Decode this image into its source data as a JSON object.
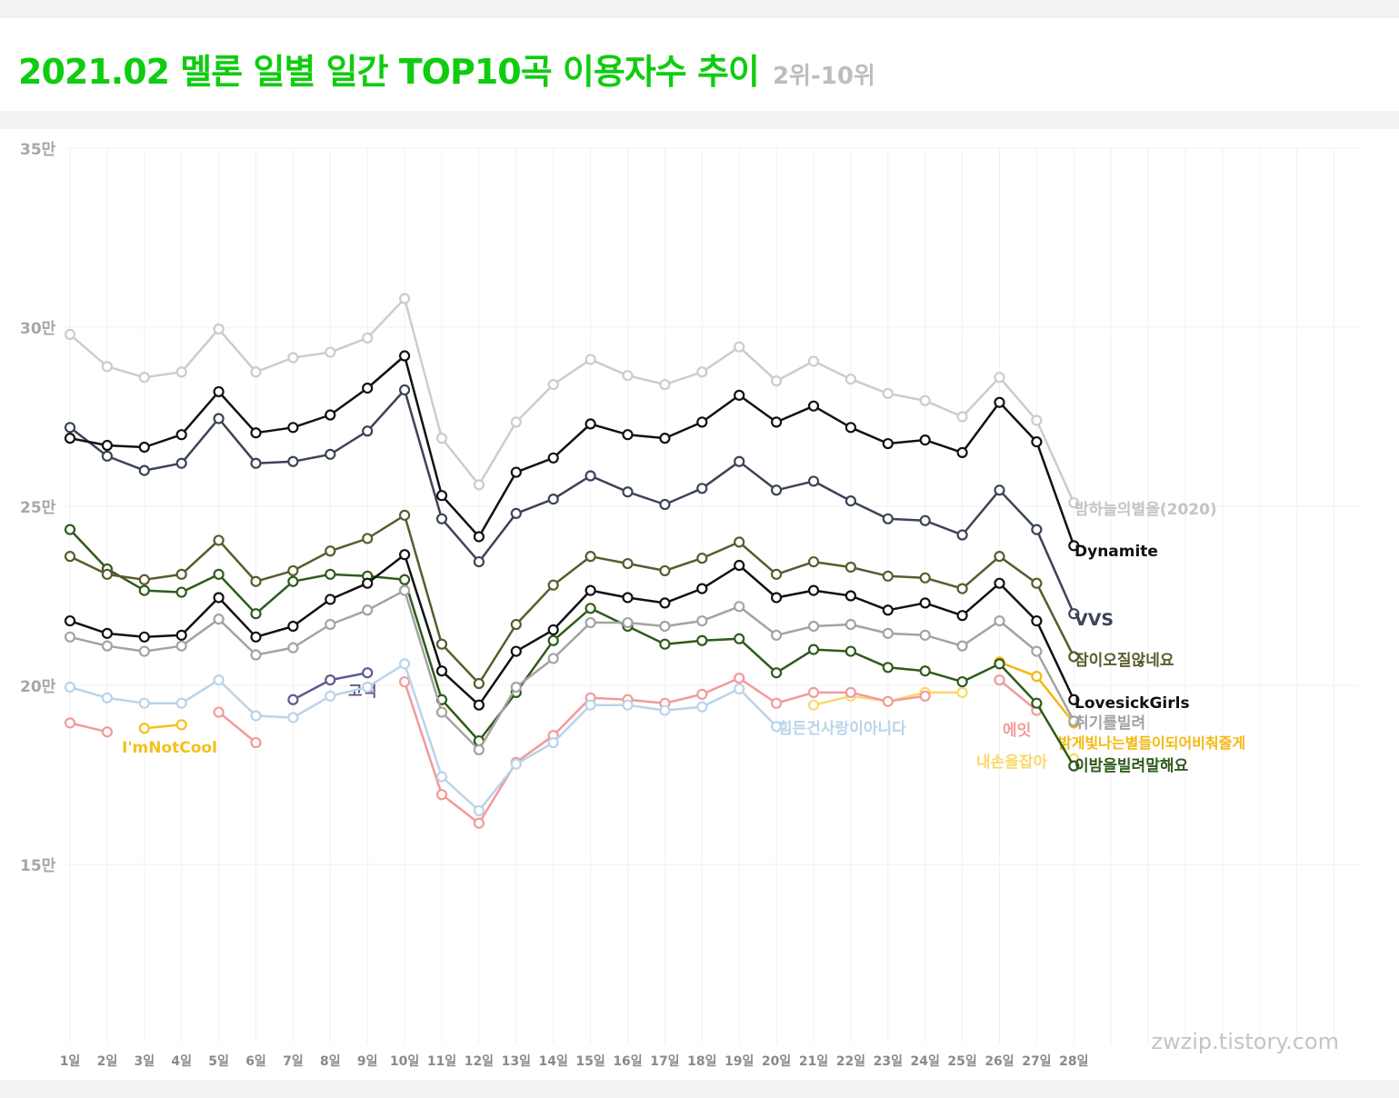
{
  "header": {
    "title": "2021.02 멜론 일별 일간 TOP10곡 이용자수 추이",
    "subtitle": "2위-10위"
  },
  "watermark": "zwzip.tistory.com",
  "chart_data": {
    "type": "line",
    "title": "2021.02 멜론 일별 일간 TOP10곡 이용자수 추이",
    "subtitle": "2위-10위",
    "x": [
      "1일",
      "2일",
      "3일",
      "4일",
      "5일",
      "6일",
      "7일",
      "8일",
      "9일",
      "10일",
      "11일",
      "12일",
      "13일",
      "14일",
      "15일",
      "16일",
      "17일",
      "18일",
      "19일",
      "20일",
      "21일",
      "22일",
      "23일",
      "24일",
      "25일",
      "26일",
      "27일",
      "28일"
    ],
    "ylim": [
      10,
      35
    ],
    "yticks": [
      {
        "value": 15,
        "label": "15만"
      },
      {
        "value": 20,
        "label": "20만"
      },
      {
        "value": 25,
        "label": "25만"
      },
      {
        "value": 30,
        "label": "30만"
      },
      {
        "value": 35,
        "label": "35만"
      }
    ],
    "grid": true,
    "series": [
      {
        "name": "밤하늘의별을(2020)",
        "color": "#cccccc",
        "values": [
          29.8,
          28.9,
          28.6,
          28.75,
          29.95,
          28.75,
          29.15,
          29.3,
          29.7,
          30.8,
          26.9,
          25.6,
          27.35,
          28.4,
          29.1,
          28.65,
          28.4,
          28.75,
          29.45,
          28.5,
          29.05,
          28.55,
          28.15,
          27.95,
          27.5,
          28.6,
          27.4,
          25.1
        ]
      },
      {
        "name": "Dynamite",
        "color": "#111111",
        "values": [
          26.9,
          26.7,
          26.65,
          27.0,
          28.2,
          27.05,
          27.2,
          27.55,
          28.3,
          29.2,
          25.3,
          24.15,
          25.95,
          26.35,
          27.3,
          27.0,
          26.9,
          27.35,
          28.1,
          27.35,
          27.8,
          27.2,
          26.75,
          26.85,
          26.5,
          27.9,
          26.8,
          23.9
        ]
      },
      {
        "name": "VVS",
        "color": "#3b4357",
        "values": [
          27.2,
          26.4,
          26.0,
          26.2,
          27.45,
          26.2,
          26.25,
          26.45,
          27.1,
          28.25,
          24.65,
          23.45,
          24.8,
          25.2,
          25.85,
          25.4,
          25.05,
          25.5,
          26.25,
          25.45,
          25.7,
          25.15,
          24.65,
          24.6,
          24.2,
          25.45,
          24.35,
          22.0
        ]
      },
      {
        "name": "잠이오질않네요",
        "color": "#5a5a2e",
        "values": [
          23.6,
          23.1,
          22.95,
          23.1,
          24.05,
          22.9,
          23.2,
          23.75,
          24.1,
          24.75,
          21.15,
          20.05,
          21.7,
          22.8,
          23.6,
          23.4,
          23.2,
          23.55,
          24.0,
          23.1,
          23.45,
          23.3,
          23.05,
          23.0,
          22.7,
          23.6,
          22.85,
          20.8
        ]
      },
      {
        "name": "LovesickGirls",
        "color": "#111111",
        "values": [
          21.8,
          21.45,
          21.35,
          21.4,
          22.45,
          21.35,
          21.65,
          22.4,
          22.85,
          23.65,
          20.4,
          19.45,
          20.95,
          21.55,
          22.65,
          22.45,
          22.3,
          22.7,
          23.35,
          22.45,
          22.65,
          22.5,
          22.1,
          22.3,
          21.95,
          22.85,
          21.8,
          19.6
        ]
      },
      {
        "name": "취기를빌려",
        "color": "#a3a3a3",
        "values": [
          21.35,
          21.1,
          20.95,
          21.1,
          21.85,
          20.85,
          21.05,
          21.7,
          22.1,
          22.65,
          19.25,
          18.2,
          19.95,
          20.75,
          21.75,
          21.75,
          21.65,
          21.8,
          22.2,
          21.4,
          21.65,
          21.7,
          21.45,
          21.4,
          21.1,
          21.8,
          20.95,
          19.0
        ]
      },
      {
        "name": "이밤을빌려말해요",
        "color": "#2e5b1c",
        "values": [
          24.35,
          23.25,
          22.65,
          22.6,
          23.1,
          22.0,
          22.9,
          23.1,
          23.05,
          22.95,
          19.6,
          18.45,
          19.8,
          21.25,
          22.15,
          21.65,
          21.15,
          21.25,
          21.3,
          20.35,
          21.0,
          20.95,
          20.5,
          20.4,
          20.1,
          20.6,
          19.5,
          17.75
        ]
      },
      {
        "name": "힘든건사랑이아니다",
        "color": "#b9d4ea",
        "values": [
          19.95,
          19.65,
          19.5,
          19.5,
          20.15,
          19.15,
          19.1,
          19.7,
          19.95,
          20.6,
          17.45,
          16.5,
          17.8,
          18.4,
          19.45,
          19.45,
          19.3,
          19.4,
          19.9,
          18.85,
          null,
          null,
          null,
          null,
          null,
          null,
          null,
          null
        ]
      },
      {
        "name": "에잇",
        "color": "#f29a9a",
        "values": [
          18.95,
          18.7,
          null,
          null,
          19.25,
          18.4,
          null,
          null,
          null,
          20.1,
          16.95,
          16.15,
          17.85,
          18.6,
          19.65,
          19.6,
          19.5,
          19.75,
          20.2,
          19.5,
          19.8,
          19.8,
          19.55,
          19.7,
          null,
          20.15,
          19.3,
          null
        ]
      },
      {
        "name": "I'mNotCool",
        "color": "#f5c01a",
        "values": [
          null,
          null,
          18.8,
          18.9,
          null,
          null,
          null,
          null,
          null,
          null,
          null,
          null,
          null,
          null,
          null,
          null,
          null,
          null,
          null,
          null,
          null,
          null,
          null,
          null,
          null,
          null,
          null,
          null
        ]
      },
      {
        "name": "고백",
        "color": "#5c5a8f",
        "values": [
          null,
          null,
          null,
          null,
          null,
          null,
          19.6,
          20.15,
          20.35,
          null,
          null,
          null,
          null,
          null,
          null,
          null,
          null,
          null,
          null,
          null,
          null,
          null,
          null,
          null,
          null,
          null,
          null,
          null
        ]
      },
      {
        "name": "내손을잡아",
        "color": "#f9d96b",
        "values": [
          null,
          null,
          null,
          null,
          null,
          null,
          null,
          null,
          null,
          null,
          null,
          null,
          null,
          null,
          null,
          null,
          null,
          null,
          null,
          null,
          19.45,
          19.7,
          19.55,
          19.8,
          19.8,
          null,
          null,
          17.95
        ]
      },
      {
        "name": "밝게빛나는별들이되어비춰줄게",
        "color": "#f3b90f",
        "values": [
          null,
          null,
          null,
          null,
          null,
          null,
          null,
          null,
          null,
          null,
          null,
          null,
          null,
          null,
          null,
          null,
          null,
          null,
          null,
          null,
          null,
          null,
          null,
          null,
          null,
          20.65,
          20.25,
          18.95
        ]
      }
    ]
  }
}
